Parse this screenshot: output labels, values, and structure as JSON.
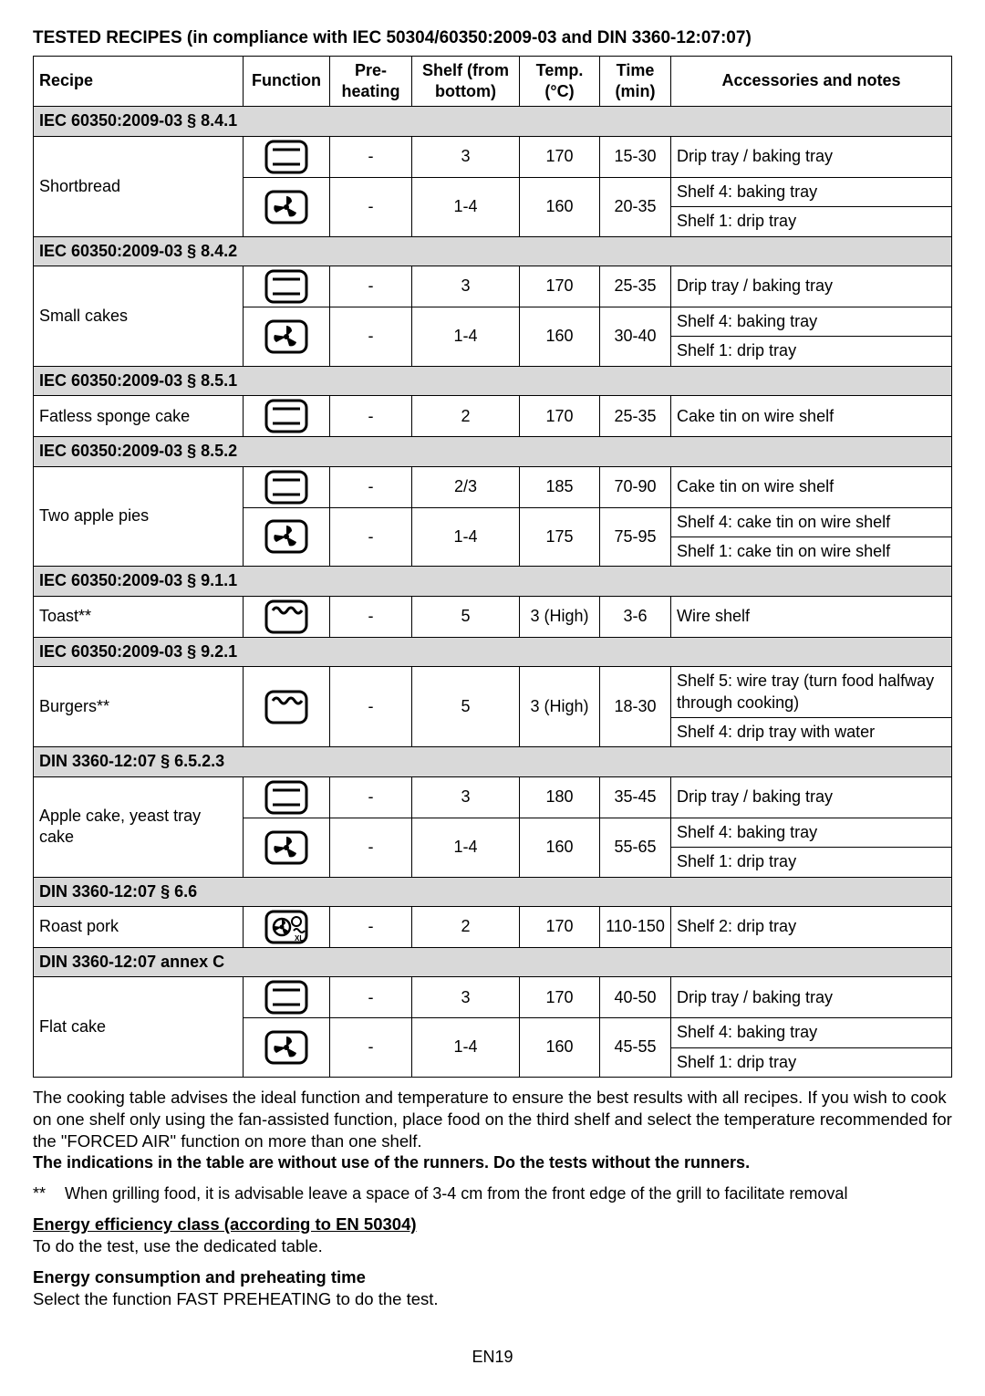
{
  "title": "TESTED RECIPES (in compliance with IEC 50304/60350:2009-03 and DIN 3360-12:07:07)",
  "headers": {
    "recipe": "Recipe",
    "function": "Function",
    "preheating": "Pre-heating",
    "shelf": "Shelf (from bottom)",
    "temp": "Temp. (°C)",
    "time": "Time (min)",
    "notes": "Accessories and notes"
  },
  "sections": [
    {
      "label": "IEC 60350:2009-03 § 8.4.1",
      "recipe": "Shortbread",
      "rows": [
        {
          "icon": "conventional",
          "pre": "-",
          "shelf": "3",
          "temp": "170",
          "time": "15-30",
          "notes": [
            "Drip tray / baking tray"
          ]
        },
        {
          "icon": "fan",
          "pre": "-",
          "shelf": "1-4",
          "temp": "160",
          "time": "20-35",
          "notes": [
            "Shelf 4: baking tray",
            "Shelf 1: drip tray"
          ]
        }
      ]
    },
    {
      "label": "IEC 60350:2009-03 § 8.4.2",
      "recipe": "Small cakes",
      "rows": [
        {
          "icon": "conventional",
          "pre": "-",
          "shelf": "3",
          "temp": "170",
          "time": "25-35",
          "notes": [
            "Drip tray / baking tray"
          ]
        },
        {
          "icon": "fan",
          "pre": "-",
          "shelf": "1-4",
          "temp": "160",
          "time": "30-40",
          "notes": [
            "Shelf 4: baking tray",
            "Shelf 1: drip tray"
          ]
        }
      ]
    },
    {
      "label": "IEC 60350:2009-03 § 8.5.1",
      "recipe": "Fatless sponge cake",
      "rows": [
        {
          "icon": "conventional",
          "pre": "-",
          "shelf": "2",
          "temp": "170",
          "time": "25-35",
          "notes": [
            "Cake tin on wire shelf"
          ]
        }
      ]
    },
    {
      "label": "IEC 60350:2009-03 § 8.5.2",
      "recipe": "Two apple pies",
      "rows": [
        {
          "icon": "conventional",
          "pre": "-",
          "shelf": "2/3",
          "temp": "185",
          "time": "70-90",
          "notes": [
            "Cake tin on wire shelf"
          ]
        },
        {
          "icon": "fan",
          "pre": "-",
          "shelf": "1-4",
          "temp": "175",
          "time": "75-95",
          "notes": [
            "Shelf 4: cake tin on wire shelf",
            "Shelf 1: cake tin on wire shelf"
          ]
        }
      ]
    },
    {
      "label": "IEC 60350:2009-03 § 9.1.1",
      "recipe": "Toast**",
      "rows": [
        {
          "icon": "grill",
          "pre": "-",
          "shelf": "5",
          "temp": "3 (High)",
          "time": "3-6",
          "notes": [
            "Wire shelf"
          ]
        }
      ]
    },
    {
      "label": "IEC 60350:2009-03 § 9.2.1",
      "recipe": "Burgers**",
      "rows": [
        {
          "icon": "grill",
          "pre": "-",
          "shelf": "5",
          "temp": "3 (High)",
          "time": "18-30",
          "notes": [
            "Shelf 5: wire tray (turn food halfway through cooking)",
            "Shelf 4: drip tray with water"
          ]
        }
      ]
    },
    {
      "label": "DIN 3360-12:07 § 6.5.2.3",
      "recipe": "Apple cake, yeast tray cake",
      "rows": [
        {
          "icon": "conventional",
          "pre": "-",
          "shelf": "3",
          "temp": "180",
          "time": "35-45",
          "notes": [
            "Drip tray / baking tray"
          ]
        },
        {
          "icon": "fan",
          "pre": "-",
          "shelf": "1-4",
          "temp": "160",
          "time": "55-65",
          "notes": [
            "Shelf 4: baking tray",
            "Shelf 1: drip tray"
          ]
        }
      ]
    },
    {
      "label": "DIN 3360-12:07 § 6.6",
      "recipe": "Roast pork",
      "rows": [
        {
          "icon": "turbo",
          "pre": "-",
          "shelf": "2",
          "temp": "170",
          "time": "110-150",
          "notes": [
            "Shelf 2: drip tray"
          ]
        }
      ]
    },
    {
      "label": "DIN 3360-12:07 annex C",
      "recipe": "Flat cake",
      "rows": [
        {
          "icon": "conventional",
          "pre": "-",
          "shelf": "3",
          "temp": "170",
          "time": "40-50",
          "notes": [
            "Drip tray / baking tray"
          ]
        },
        {
          "icon": "fan",
          "pre": "-",
          "shelf": "1-4",
          "temp": "160",
          "time": "45-55",
          "notes": [
            "Shelf 4: baking tray",
            "Shelf 1: drip tray"
          ]
        }
      ]
    }
  ],
  "advice": "The cooking table advises the ideal function and temperature to ensure the best results with all recipes. If you wish to cook on one shelf only using the fan-assisted function, place food on the third shelf and select the temperature recommended for the \"FORCED AIR\" function on more than one shelf.",
  "runners": "The indications in the table are without use of the runners. Do the tests without the runners.",
  "footnote_mark": "**",
  "footnote": "When grilling food, it is advisable leave a space of 3-4 cm from the front edge of the grill to facilitate removal",
  "energy_class_title": "Energy efficiency class (according to EN 50304)",
  "energy_class_body": "To do the test, use the dedicated table.",
  "energy_cons_title": "Energy consumption and preheating time",
  "energy_cons_body": "Select the  function FAST PREHEATING to do the test.",
  "page_footer": "EN19"
}
